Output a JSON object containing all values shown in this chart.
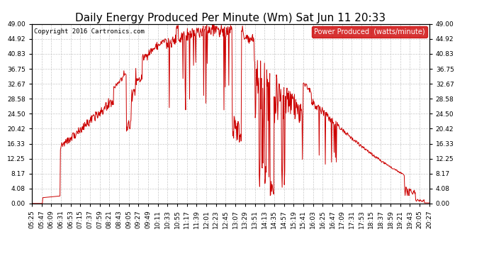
{
  "title": "Daily Energy Produced Per Minute (Wm) Sat Jun 11 20:33",
  "copyright": "Copyright 2016 Cartronics.com",
  "legend_label": "Power Produced  (watts/minute)",
  "legend_bg": "#cc0000",
  "legend_text_color": "#ffffff",
  "line_color": "#cc0000",
  "bg_color": "#ffffff",
  "grid_color": "#c8c8c8",
  "ylim": [
    0,
    49.0
  ],
  "yticks": [
    0.0,
    4.08,
    8.17,
    12.25,
    16.33,
    20.42,
    24.5,
    28.58,
    32.67,
    36.75,
    40.83,
    44.92,
    49.0
  ],
  "title_fontsize": 11,
  "tick_fontsize": 6.5,
  "copyright_fontsize": 6.5,
  "legend_fontsize": 7,
  "tick_times_str": [
    "05:25",
    "05:47",
    "06:09",
    "06:31",
    "06:53",
    "07:15",
    "07:37",
    "07:59",
    "08:21",
    "08:43",
    "09:05",
    "09:27",
    "09:49",
    "10:11",
    "10:33",
    "10:55",
    "11:17",
    "11:39",
    "12:01",
    "12:23",
    "12:45",
    "13:07",
    "13:29",
    "13:51",
    "14:13",
    "14:35",
    "14:57",
    "15:19",
    "15:41",
    "16:03",
    "16:25",
    "16:47",
    "17:09",
    "17:31",
    "17:53",
    "18:15",
    "18:37",
    "18:59",
    "19:21",
    "19:43",
    "20:05",
    "20:27"
  ]
}
